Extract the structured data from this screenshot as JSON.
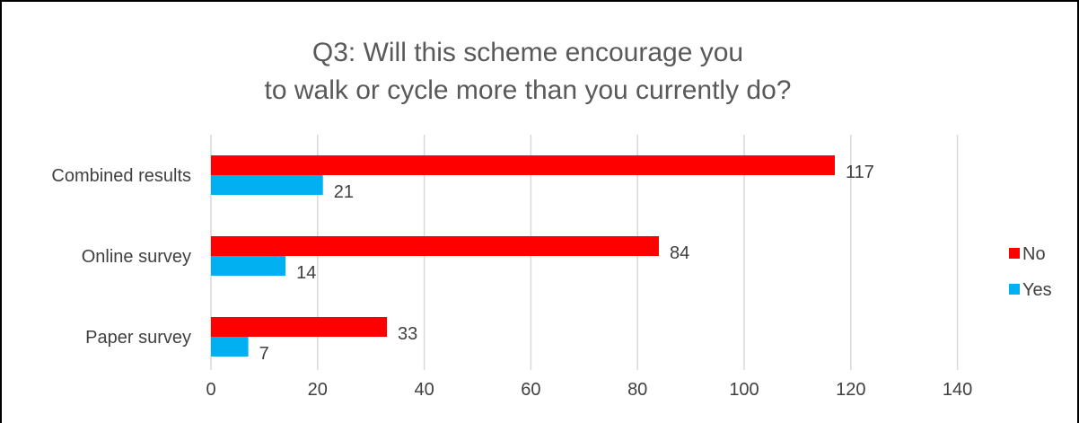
{
  "chart_data": {
    "type": "bar",
    "orientation": "horizontal",
    "title_lines": [
      "Q3: Will this scheme encourage you",
      "to walk or cycle more than you currently do?"
    ],
    "categories": [
      "Combined results",
      "Online survey",
      "Paper survey"
    ],
    "series": [
      {
        "name": "No",
        "color": "#FF0000",
        "values": [
          117,
          84,
          33
        ]
      },
      {
        "name": "Yes",
        "color": "#00B0F0",
        "values": [
          21,
          14,
          7
        ]
      }
    ],
    "xlim": [
      0,
      150
    ],
    "x_ticks": [
      0,
      20,
      40,
      60,
      80,
      100,
      120,
      140
    ],
    "grid": true,
    "legend_position": "right"
  }
}
